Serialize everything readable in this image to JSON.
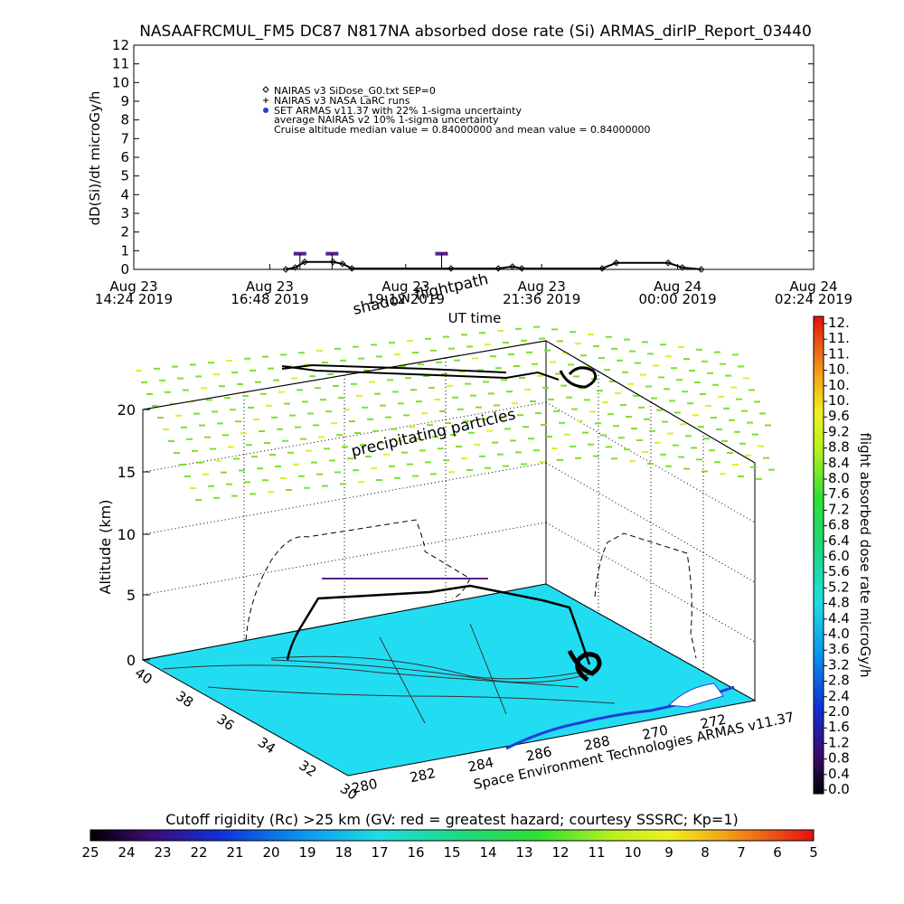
{
  "title": "NASAAFRCMUL_FM5 DC87 N817NA absorbed dose rate (Si) ARMAS_dirIP_Report_03440",
  "chart_data": [
    {
      "type": "line",
      "ylabel": "dD(Si)/dt microGy/h",
      "xlabel": "UT time",
      "ylim": [
        0,
        12
      ],
      "y_ticks": [
        "0",
        "1",
        "2",
        "3",
        "4",
        "5",
        "6",
        "7",
        "8",
        "9",
        "10",
        "11",
        "12"
      ],
      "x_ticks": [
        {
          "l1": "Aug 23",
          "l2": "14:24 2019"
        },
        {
          "l1": "Aug 23",
          "l2": "16:48 2019"
        },
        {
          "l1": "Aug 23",
          "l2": "19:12 2019"
        },
        {
          "l1": "Aug 23",
          "l2": "21:36 2019"
        },
        {
          "l1": "Aug 24",
          "l2": "00:00 2019"
        },
        {
          "l1": "Aug 24",
          "l2": "02:24 2019"
        }
      ],
      "legend": [
        "NAIRAS v3 SiDose_G0.txt SEP=0",
        "NAIRAS v3 NASA LaRC runs",
        "SET ARMAS v11.37 with 22% 1-sigma uncertainty",
        "average NAIRAS v2 10% 1-sigma uncertainty",
        "Cruise altitude median value = 0.84000000 and mean value = 0.84000000"
      ],
      "series": [
        {
          "name": "NAIRAS v3 SiDose_G0.txt SEP=0",
          "x": [
            "Aug 23 17:05",
            "Aug 23 17:15",
            "Aug 23 17:25",
            "Aug 23 17:55",
            "Aug 23 18:05",
            "Aug 23 18:15",
            "Aug 23 20:00",
            "Aug 23 20:50",
            "Aug 23 21:05",
            "Aug 23 21:15",
            "Aug 23 22:40",
            "Aug 23 22:55",
            "Aug 23 23:50",
            "Aug 24 00:05",
            "Aug 24 00:25"
          ],
          "values": [
            0.0,
            0.1,
            0.4,
            0.4,
            0.3,
            0.05,
            0.05,
            0.05,
            0.15,
            0.05,
            0.05,
            0.35,
            0.35,
            0.1,
            0.0
          ]
        },
        {
          "name": "SET ARMAS v11.37 with 22% 1-sigma uncertainty",
          "x": [
            "Aug 23 17:20",
            "Aug 23 17:54",
            "Aug 23 19:50"
          ],
          "values": [
            0.84,
            0.84,
            0.84
          ]
        }
      ]
    },
    {
      "type": "scatter",
      "ylabel": "Altitude (km)",
      "z_ticks": [
        "0",
        "5",
        "10",
        "15",
        "20"
      ],
      "lon_ticks": [
        "280",
        "282",
        "284",
        "286",
        "288",
        "270",
        "272"
      ],
      "lat_ticks": [
        "40",
        "38",
        "36",
        "34",
        "32",
        "30"
      ],
      "annotations": [
        "shadow flightpath",
        "precipitating particles"
      ],
      "credit": "Space Environment Technologies ARMAS v11.37"
    }
  ],
  "colorbar_right": {
    "label": "flight absorbed dose rate microGy/h",
    "ticks": [
      "12.",
      "11.",
      "11.",
      "10.",
      "10.",
      "10.",
      "9.6",
      "9.2",
      "8.8",
      "8.4",
      "8.0",
      "7.6",
      "7.2",
      "6.8",
      "6.4",
      "6.0",
      "5.6",
      "5.2",
      "4.8",
      "4.4",
      "4.0",
      "3.6",
      "3.2",
      "2.8",
      "2.4",
      "2.0",
      "1.6",
      "1.2",
      "0.8",
      "0.4",
      "0.0"
    ]
  },
  "colorbar_bottom": {
    "label": "Cutoff rigidity (Rc) >25 km (GV: red = greatest hazard; courtesy SSSRC; Kp=1)",
    "ticks": [
      "25",
      "24",
      "23",
      "22",
      "21",
      "20",
      "19",
      "18",
      "17",
      "16",
      "15",
      "14",
      "13",
      "12",
      "11",
      "10",
      "9",
      "8",
      "7",
      "6",
      "5"
    ]
  },
  "colors": {
    "map_surface": "#22ddf2",
    "dose_marker": "#5a1f8a",
    "particles": "#7ee02a",
    "coast": "#1f3fd6"
  }
}
